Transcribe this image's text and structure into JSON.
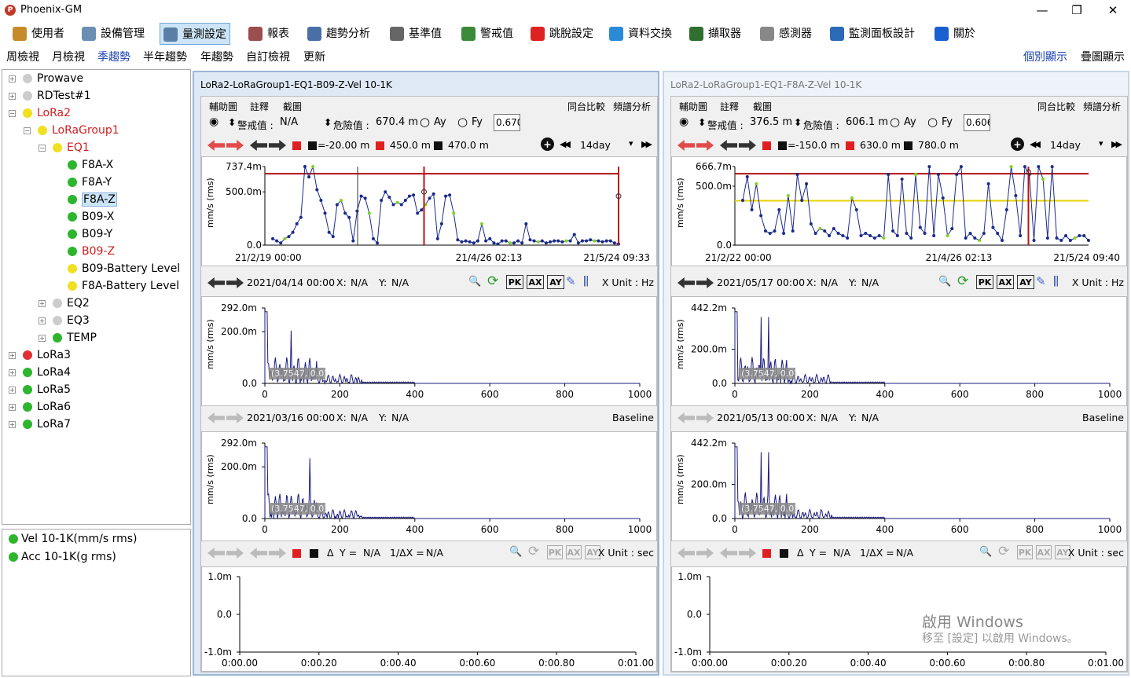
{
  "app": {
    "title": "Phoenix-GM",
    "logo": "P"
  },
  "window": {
    "min": "—",
    "max": "❐",
    "close": "✕"
  },
  "menu": [
    {
      "label": "使用者",
      "icon": "users-icon",
      "color": "#c58a2a"
    },
    {
      "label": "設備管理",
      "icon": "device-icon",
      "color": "#6a8fb3"
    },
    {
      "label": "量測設定",
      "icon": "tools-icon",
      "color": "#5a7fa6",
      "active": true
    },
    {
      "label": "報表",
      "icon": "report-icon",
      "color": "#9c4d4d"
    },
    {
      "label": "趨勢分析",
      "icon": "trend-icon",
      "color": "#4a6fa5"
    },
    {
      "label": "基準值",
      "icon": "baseline-icon",
      "color": "#666"
    },
    {
      "label": "警戒值",
      "icon": "alert-chart-icon",
      "color": "#3a8a3a"
    },
    {
      "label": "跳脫設定",
      "icon": "trip-icon",
      "color": "#d22"
    },
    {
      "label": "資料交換",
      "icon": "exchange-icon",
      "color": "#2a8ad6"
    },
    {
      "label": "擷取器",
      "icon": "acquisition-icon",
      "color": "#2f6f2f"
    },
    {
      "label": "感測器",
      "icon": "sensor-gear-icon",
      "color": "#888"
    },
    {
      "label": "監測面板設計",
      "icon": "panel-design-icon",
      "color": "#2a6ab6"
    },
    {
      "label": "關於",
      "icon": "info-icon",
      "color": "#1a5fd0"
    }
  ],
  "subnav": {
    "items": [
      "周檢視",
      "月檢視",
      "季趨勢",
      "半年趨勢",
      "年趨勢",
      "自訂檢視",
      "更新"
    ],
    "active": "季趨勢",
    "right": [
      "個別顯示",
      "疊圖顯示"
    ]
  },
  "tree": [
    {
      "label": "Prowave",
      "dot": "#ccc",
      "level": 0,
      "expander": "+"
    },
    {
      "label": "RDTest#1",
      "dot": "#ccc",
      "level": 0,
      "expander": "+"
    },
    {
      "label": "LoRa2",
      "dot": "#f0e020",
      "level": 0,
      "expander": "−",
      "red": true
    },
    {
      "label": "LoRaGroup1",
      "dot": "#f0e020",
      "level": 1,
      "expander": "−",
      "red": true
    },
    {
      "label": "EQ1",
      "dot": "#f0e020",
      "level": 2,
      "expander": "−",
      "red": true
    },
    {
      "label": "F8A-X",
      "dot": "#2db52d",
      "level": 3
    },
    {
      "label": "F8A-Y",
      "dot": "#2db52d",
      "level": 3
    },
    {
      "label": "F8A-Z",
      "dot": "#2db52d",
      "level": 3,
      "selected": true
    },
    {
      "label": "B09-X",
      "dot": "#2db52d",
      "level": 3
    },
    {
      "label": "B09-Y",
      "dot": "#2db52d",
      "level": 3
    },
    {
      "label": "B09-Z",
      "dot": "#2db52d",
      "level": 3,
      "red": true
    },
    {
      "label": "B09-Battery Level",
      "dot": "#f0e020",
      "level": 3
    },
    {
      "label": "F8A-Battery Level",
      "dot": "#f0e020",
      "level": 3
    },
    {
      "label": "EQ2",
      "dot": "#ccc",
      "level": 2,
      "expander": "+"
    },
    {
      "label": "EQ3",
      "dot": "#ccc",
      "level": 2,
      "expander": "+"
    },
    {
      "label": "TEMP",
      "dot": "#2db52d",
      "level": 2,
      "expander": "+"
    },
    {
      "label": "LoRa3",
      "dot": "#e03030",
      "level": 0,
      "expander": "+"
    },
    {
      "label": "LoRa4",
      "dot": "#2db52d",
      "level": 0,
      "expander": "+"
    },
    {
      "label": "LoRa5",
      "dot": "#2db52d",
      "level": 0,
      "expander": "+"
    },
    {
      "label": "LoRa6",
      "dot": "#2db52d",
      "level": 0,
      "expander": "+"
    },
    {
      "label": "LoRa7",
      "dot": "#2db52d",
      "level": 0,
      "expander": "+"
    }
  ],
  "measures": [
    {
      "label": "Vel 10-1K(mm/s rms)",
      "dot": "#2db52d"
    },
    {
      "label": "Acc 10-1K(g rms)",
      "dot": "#2db52d"
    }
  ],
  "common": {
    "tools": {
      "aux": "輔助圖",
      "annot": "註釋",
      "capture": "截圖",
      "compare": "同台比較",
      "spectrum": "頻譜分析"
    },
    "ay": "Ay",
    "fy": "Fy",
    "span": "14day",
    "warn_label": "警戒值 :",
    "danger_label": "危險值 :",
    "x_label": "X:",
    "y_label": "Y:",
    "na": "N/A",
    "xunit_hz": "X Unit :   Hz",
    "xunit_sec": "X Unit : sec",
    "baseline": "Baseline",
    "ylabel": "mm/s (rms)",
    "delta_y": "Y =",
    "inv_dx": "1/ΔX =",
    "delta": "Δ",
    "eq": "=",
    "pk": "PK",
    "ax": "AX",
    "ay_btn": "AY",
    "play": "▶▶",
    "rew": "◀◀",
    "add": "+",
    "caret": "▾"
  },
  "panels": [
    {
      "title": "LoRa2-LoRaGroup1-EQ1-B09-Z-Vel 10-1K",
      "active": true,
      "warn_value": "N/A",
      "danger_value": "670.4 m",
      "input_value": "0.670",
      "range_low": "-20.00 m",
      "red_val": "450.0 m",
      "black_val": "470.0 m",
      "trend": {
        "ymax_label": "737.4m",
        "ymid_label": "500.0m",
        "yzero_label": "0.0",
        "x_labels": [
          "21/2/19 00:00",
          "21/4/26 02:13",
          "21/5/24 09:33"
        ],
        "ymax": 737.4,
        "danger": 670.4,
        "warn": null,
        "series": [
          60,
          40,
          20,
          60,
          80,
          120,
          200,
          260,
          737,
          640,
          737,
          520,
          420,
          300,
          120,
          80,
          380,
          420,
          300,
          260,
          40,
          320,
          460,
          440,
          300,
          60,
          20,
          420,
          500,
          450,
          380,
          400,
          380,
          420,
          460,
          470,
          300,
          330,
          380,
          440,
          480,
          60,
          200,
          460,
          470,
          300,
          50,
          30,
          40,
          30,
          20,
          40,
          200,
          40,
          60,
          20,
          10,
          40,
          40,
          20,
          20,
          40,
          20,
          200,
          50,
          40,
          30,
          40,
          20,
          30,
          40,
          40,
          30,
          40,
          40,
          100,
          20,
          40,
          40,
          50,
          40,
          40,
          30,
          40,
          40,
          20,
          10
        ],
        "markers": [
          {
            "x": 0.45,
            "y": 500
          },
          {
            "x": 1.0,
            "y": 460
          }
        ]
      },
      "spec1": {
        "date": "2021/04/14 00:00",
        "ymax_label": "292.0m",
        "ymid_label": "200.0m",
        "yzero_label": "0.0",
        "ymax": 292.0,
        "xticks": [
          "0",
          "200",
          "400",
          "600",
          "800",
          "1000"
        ],
        "tag": "(3.7547, 0.0)"
      },
      "spec2": {
        "date": "2021/03/16 00:00",
        "ymax_label": "292.0m",
        "ymid_label": "200.0m",
        "yzero_label": "0.0",
        "ymax": 292.0,
        "xticks": [
          "0",
          "200",
          "400",
          "600",
          "800",
          "1000"
        ],
        "tag": "(3.7547, 0.0)"
      },
      "wave": {
        "ytop": "1.0m",
        "ymid": "0.0",
        "ybot": "-1.0m",
        "xticks": [
          "0:00.00",
          "0:00.20",
          "0:00.40",
          "0:00.60",
          "0:00.80",
          "0:01.00"
        ],
        "y_value": "N/A",
        "dx_value": "N/A"
      }
    },
    {
      "title": "LoRa2-LoRaGroup1-EQ1-F8A-Z-Vel 10-1K",
      "active": false,
      "warn_value": "376.5 m",
      "danger_value": "606.1 m",
      "input_value": "0.606",
      "range_low": "-150.0 m",
      "red_val": "630.0 m",
      "black_val": "780.0 m",
      "trend": {
        "ymax_label": "666.7m",
        "ymid_label": "500.0m",
        "yzero_label": "0.0",
        "x_labels": [
          "21/2/22 00:00",
          "21/4/26 02:13",
          "21/5/24 09:40"
        ],
        "ymax": 666.7,
        "danger": 606.1,
        "warn": 376.5,
        "series": [
          380,
          580,
          300,
          520,
          250,
          120,
          100,
          120,
          300,
          100,
          420,
          120,
          600,
          380,
          520,
          180,
          100,
          140,
          120,
          80,
          140,
          100,
          80,
          60,
          400,
          300,
          80,
          100,
          80,
          60,
          80,
          60,
          600,
          120,
          80,
          560,
          100,
          60,
          600,
          150,
          100,
          666,
          80,
          600,
          400,
          80,
          140,
          600,
          666,
          60,
          100,
          60,
          40,
          100,
          520,
          150,
          100,
          40,
          300,
          666,
          420,
          80,
          666,
          600,
          40,
          666,
          560,
          60,
          666,
          60,
          40,
          80,
          40,
          60,
          80,
          80,
          40
        ],
        "markers": [
          {
            "x": 0.83,
            "y": 620
          }
        ]
      },
      "spec1": {
        "date": "2021/05/17 00:00",
        "ymax_label": "442.2m",
        "ymid_label": "200.0m",
        "yzero_label": "0.0",
        "ymax": 442.2,
        "xticks": [
          "0",
          "200",
          "400",
          "600",
          "800",
          "1000"
        ],
        "tag": "(3.7547, 0.0)"
      },
      "spec2": {
        "date": "2021/05/13 00:00",
        "ymax_label": "442.2m",
        "ymid_label": "200.0m",
        "yzero_label": "0.0",
        "ymax": 442.2,
        "xticks": [
          "0",
          "200",
          "400",
          "600",
          "800",
          "1000"
        ],
        "tag": "(3.7547, 0.0)"
      },
      "wave": {
        "ytop": "1.0m",
        "ymid": "0.0",
        "ybot": "-1.0m",
        "xticks": [
          "0:00.00",
          "0:00.20",
          "0:00.40",
          "0:00.60",
          "0:00.80",
          "0:01.00"
        ],
        "y_value": "N/A",
        "dx_value": "N/A"
      }
    }
  ],
  "watermark": {
    "line1": "啟用 Windows",
    "line2": "移至 [設定] 以啟用 Windows。"
  }
}
